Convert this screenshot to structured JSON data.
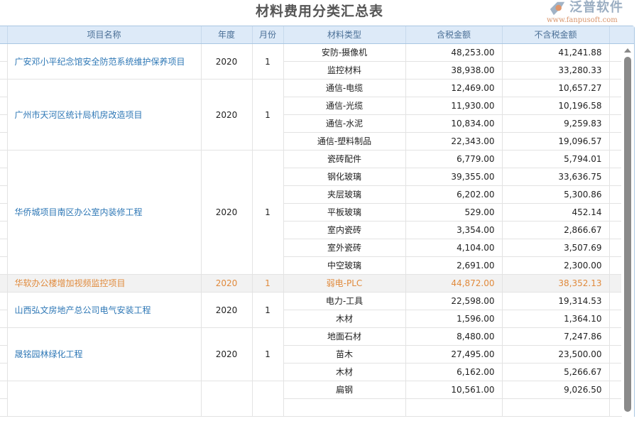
{
  "title": "材料费用分类汇总表",
  "columns": [
    "",
    "项目名称",
    "年度",
    "月份",
    "材料类型",
    "含税金额",
    "不含税金额",
    ""
  ],
  "colors": {
    "header_bg": "#ddeaf8",
    "link": "#2f78b6",
    "highlight_text": "#e08a3c",
    "highlight_bg": "#f2f2f2"
  },
  "groups": [
    {
      "name": "广安邓小平纪念馆安全防范系统维护保养项目",
      "year": "2020",
      "month": "1",
      "items": [
        {
          "type": "安防-摄像机",
          "tax": "48,253.00",
          "notax": "41,241.88"
        },
        {
          "type": "监控材料",
          "tax": "38,938.00",
          "notax": "33,280.33"
        }
      ]
    },
    {
      "name": "广州市天河区统计局机房改造项目",
      "year": "2020",
      "month": "1",
      "items": [
        {
          "type": "通信-电缆",
          "tax": "12,469.00",
          "notax": "10,657.27"
        },
        {
          "type": "通信-光缆",
          "tax": "11,930.00",
          "notax": "10,196.58"
        },
        {
          "type": "通信-水泥",
          "tax": "10,834.00",
          "notax": "9,259.83"
        },
        {
          "type": "通信-塑料制品",
          "tax": "22,343.00",
          "notax": "19,096.57"
        }
      ]
    },
    {
      "name": "华侨城项目南区办公室内装修工程",
      "year": "2020",
      "month": "1",
      "items": [
        {
          "type": "瓷砖配件",
          "tax": "6,779.00",
          "notax": "5,794.01"
        },
        {
          "type": "钢化玻璃",
          "tax": "39,355.00",
          "notax": "33,636.75"
        },
        {
          "type": "夹层玻璃",
          "tax": "6,202.00",
          "notax": "5,300.86"
        },
        {
          "type": "平板玻璃",
          "tax": "529.00",
          "notax": "452.14"
        },
        {
          "type": "室内瓷砖",
          "tax": "3,354.00",
          "notax": "2,866.67"
        },
        {
          "type": "室外瓷砖",
          "tax": "4,104.00",
          "notax": "3,507.69"
        },
        {
          "type": "中空玻璃",
          "tax": "2,691.00",
          "notax": "2,300.00"
        }
      ]
    },
    {
      "name": "华软办公楼增加视频监控项目",
      "year": "2020",
      "month": "1",
      "highlight": true,
      "items": [
        {
          "type": "弱电-PLC",
          "tax": "44,872.00",
          "notax": "38,352.13"
        }
      ]
    },
    {
      "name": "山西弘文房地产总公司电气安装工程",
      "year": "2020",
      "month": "1",
      "items": [
        {
          "type": "电力-工具",
          "tax": "22,598.00",
          "notax": "19,314.53"
        },
        {
          "type": "木材",
          "tax": "1,596.00",
          "notax": "1,364.10"
        }
      ]
    },
    {
      "name": "晟铭园林绿化工程",
      "year": "2020",
      "month": "1",
      "items": [
        {
          "type": "地面石材",
          "tax": "8,480.00",
          "notax": "7,247.86"
        },
        {
          "type": "苗木",
          "tax": "27,495.00",
          "notax": "23,500.00"
        },
        {
          "type": "木材",
          "tax": "6,162.00",
          "notax": "5,266.67"
        }
      ]
    },
    {
      "name": "",
      "year": "",
      "month": "",
      "items": [
        {
          "type": "扁钢",
          "tax": "10,561.00",
          "notax": "9,026.50"
        },
        {
          "type": "",
          "tax": "",
          "notax": ""
        }
      ]
    }
  ],
  "watermark": {
    "text": "泛普软件",
    "url": "www.fanpusoft.com"
  }
}
